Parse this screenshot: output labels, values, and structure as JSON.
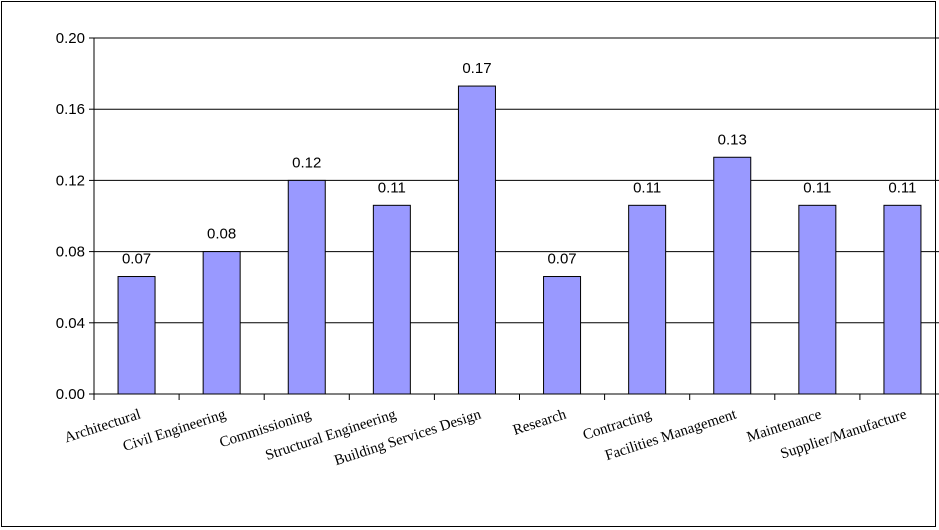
{
  "chart_data": {
    "type": "bar",
    "categories": [
      "Architectural",
      "Civil Engineering",
      "Commissioning",
      "Structural Engineering",
      "Building Services Design",
      "Research",
      "Contracting",
      "Facilities Management",
      "Maintenance",
      "Supplier/Manufacture"
    ],
    "values": [
      0.066,
      0.08,
      0.12,
      0.106,
      0.173,
      0.066,
      0.106,
      0.133,
      0.106,
      0.106
    ],
    "data_labels": [
      "0.07",
      "0.08",
      "0.12",
      "0.11",
      "0.17",
      "0.07",
      "0.11",
      "0.13",
      "0.11",
      "0.11"
    ],
    "y_ticks": [
      "0.00",
      "0.04",
      "0.08",
      "0.12",
      "0.16",
      "0.20"
    ],
    "ylim": [
      0,
      0.2
    ],
    "grid": true,
    "legend": "none",
    "bar_color": "#9999ff",
    "bar_border_color": "#000000",
    "title": "",
    "xlabel": "",
    "ylabel": ""
  }
}
